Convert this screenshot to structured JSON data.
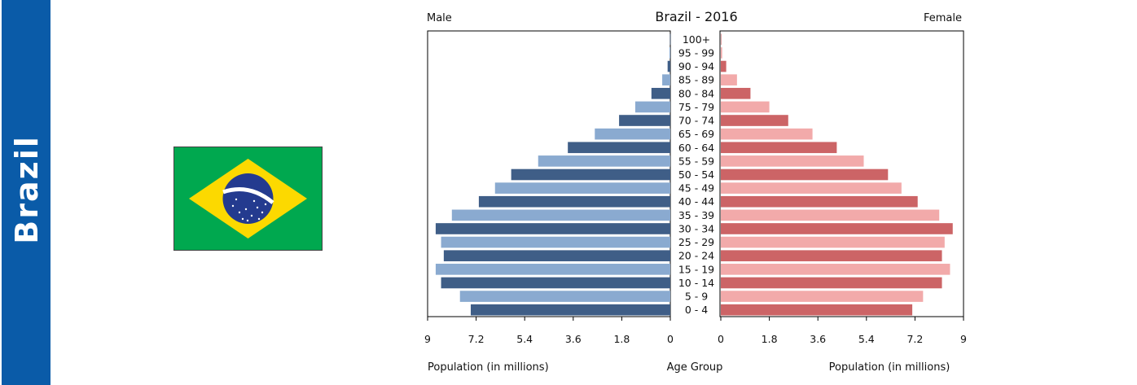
{
  "banner": {
    "label": "Brazil"
  },
  "flag": {
    "name": "brazil-flag",
    "colors": {
      "green": "#00a84f",
      "yellow": "#fcd900",
      "blue": "#243b8f",
      "white": "#ffffff"
    }
  },
  "chart_data": {
    "type": "bar",
    "subtype": "population-pyramid",
    "title": "Brazil - 2016",
    "left_label": "Male",
    "right_label": "Female",
    "xlabel_left": "Population (in millions)",
    "xlabel_center": "Age Group",
    "xlabel_right": "Population (in millions)",
    "xlim": [
      0,
      9
    ],
    "ticks": [
      "0",
      "1.8",
      "3.6",
      "5.4",
      "7.2",
      "9"
    ],
    "categories": [
      "0 - 4",
      "5 - 9",
      "10 - 14",
      "15 - 19",
      "20 - 24",
      "25 - 29",
      "30 - 34",
      "35 - 39",
      "40 - 44",
      "45 - 49",
      "50 - 54",
      "55 - 59",
      "60 - 64",
      "65 - 69",
      "70 - 74",
      "75 - 79",
      "80 - 84",
      "85 - 89",
      "90 - 94",
      "95 - 99",
      "100+"
    ],
    "series": [
      {
        "values": [
          7.4,
          7.8,
          8.5,
          8.7,
          8.4,
          8.5,
          8.7,
          8.1,
          7.1,
          6.5,
          5.9,
          4.9,
          3.8,
          2.8,
          1.9,
          1.3,
          0.7,
          0.3,
          0.1,
          0.03,
          0.01
        ]
      },
      {
        "values": [
          7.1,
          7.5,
          8.2,
          8.5,
          8.2,
          8.3,
          8.6,
          8.1,
          7.3,
          6.7,
          6.2,
          5.3,
          4.3,
          3.4,
          2.5,
          1.8,
          1.1,
          0.6,
          0.2,
          0.05,
          0.01
        ]
      }
    ],
    "colors": {
      "male_dark": "#3f5e87",
      "male_light": "#8aaad0",
      "female_dark": "#cc6466",
      "female_light": "#f2aaaa"
    }
  }
}
